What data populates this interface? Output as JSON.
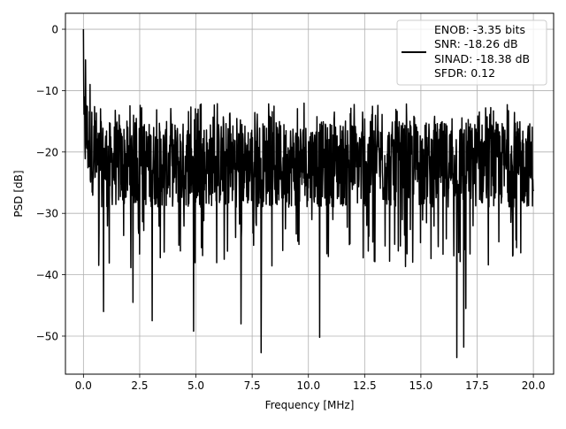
{
  "chart_data": {
    "type": "line",
    "xlabel": "Frequency [MHz]",
    "ylabel": "PSD [dB]",
    "xlim": [
      -0.8,
      20.9
    ],
    "ylim": [
      -56.2,
      2.6
    ],
    "x_ticks": [
      0.0,
      2.5,
      5.0,
      7.5,
      10.0,
      12.5,
      15.0,
      17.5,
      20.0
    ],
    "x_tick_labels": [
      "0.0",
      "2.5",
      "5.0",
      "7.5",
      "10.0",
      "12.5",
      "15.0",
      "17.5",
      "20.0"
    ],
    "y_ticks": [
      0,
      -10,
      -20,
      -30,
      -40,
      -50
    ],
    "y_tick_labels": [
      "0",
      "−10",
      "−20",
      "−30",
      "−40",
      "−50"
    ],
    "grid": true,
    "legend_placement": "upper-right",
    "legend_entries": [
      "ENOB: -3.35 bits",
      "SNR: -18.26 dB",
      "SINAD: -18.38 dB",
      "SFDR: 0.12"
    ],
    "series": [
      {
        "color": "#000000",
        "x_range": [
          0.0,
          20.0
        ],
        "sample_count": 1500,
        "typical_range_db": [
          -31,
          -12
        ],
        "peaks": [
          {
            "x": 0.0,
            "y": 0.0
          },
          {
            "x": 0.1,
            "y": -5.0
          },
          {
            "x": 0.3,
            "y": -9.0
          }
        ],
        "deep_nulls": [
          {
            "x": 0.9,
            "y": -46.0
          },
          {
            "x": 2.2,
            "y": -44.5
          },
          {
            "x": 3.05,
            "y": -47.5
          },
          {
            "x": 4.9,
            "y": -49.2
          },
          {
            "x": 7.0,
            "y": -48.0
          },
          {
            "x": 7.9,
            "y": -52.7
          },
          {
            "x": 10.5,
            "y": -50.2
          },
          {
            "x": 16.6,
            "y": -53.5
          },
          {
            "x": 16.9,
            "y": -51.8
          },
          {
            "x": 17.0,
            "y": -45.5
          }
        ]
      }
    ]
  }
}
